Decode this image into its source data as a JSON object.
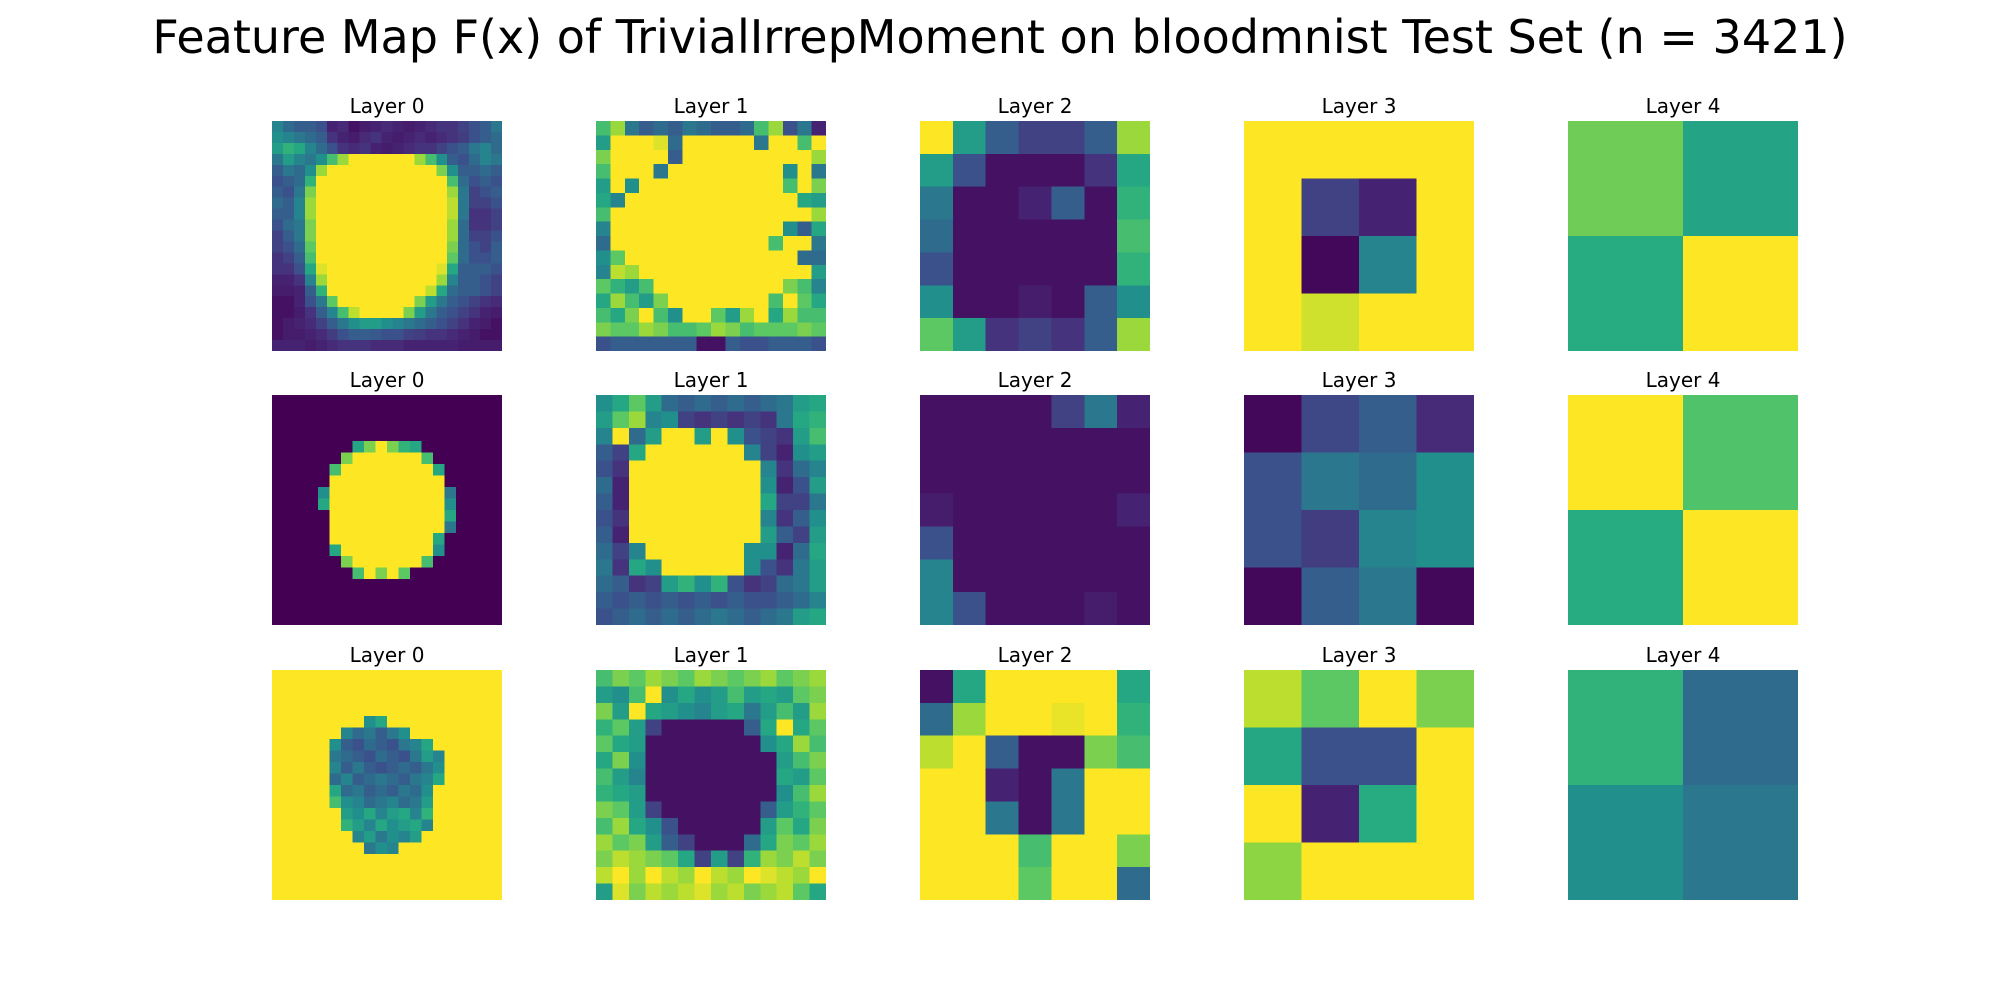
{
  "title": "Feature Map F(x) of TrivialIrrepMoment on bloodmnist Test Set (n = 3421)",
  "chart_data": {
    "type": "heatmap",
    "colormap": "viridis",
    "value_range": [
      0,
      1
    ],
    "rows": [
      {
        "panels": [
          {
            "title": "Layer 0",
            "data": [
              "0.45,0.35,0.30,0.30,0.25,0.10,0.12,0.05,0.08,0.10,0.12,0.10,0.08,0.10,0.12,0.15,0.15,0.20,0.25,0.30,0.40",
              "0.50,0.45,0.40,0.35,0.30,0.15,0.10,0.08,0.12,0.15,0.10,0.08,0.10,0.12,0.10,0.12,0.15,0.18,0.25,0.30,0.35",
              "0.55,0.65,0.60,0.45,0.35,0.25,0.15,0.12,0.15,0.10,0.08,0.10,0.12,0.15,0.15,0.20,0.25,0.30,0.40,0.45,0.35",
              "0.40,0.55,0.45,0.40,0.50,0.70,0.85,1,1,1,1,1,1,0.85,0.70,0.50,0.30,0.25,0.35,0.45,0.40",
              "0.30,0.40,0.35,0.50,0.85,1,1,1,1,1,1,1,1,1,1,0.80,0.50,0.30,0.30,0.35,0.30",
              "0.25,0.30,0.35,0.65,1,1,1,1,1,1,1,1,1,1,1,1,0.70,0.35,0.25,0.30,0.25",
              "0.30,0.25,0.40,0.80,1,1,1,1,1,1,1,1,1,1,1,1,0.85,0.40,0.20,0.25,0.30",
              "0.35,0.30,0.45,0.85,1,1,1,1,1,1,1,1,1,1,1,1,0.90,0.40,0.20,0.20,0.25",
              "0.30,0.30,0.45,0.85,1,1,1,1,1,1,1,1,1,1,1,1,0.90,0.40,0.15,0.15,0.20",
              "0.25,0.35,0.40,0.80,1,1,1,1,1,1,1,1,1,1,1,1,0.85,0.35,0.15,0.15,0.20",
              "0.20,0.30,0.40,0.80,1,1,1,1,1,1,1,1,1,1,1,1,0.85,0.35,0.20,0.20,0.25",
              "0.20,0.25,0.35,0.75,1,1,1,1,1,1,1,1,1,1,1,1,0.80,0.35,0.25,0.20,0.30",
              "0.15,0.20,0.30,0.70,1,1,1,1,1,1,1,1,1,1,1,1,0.75,0.35,0.25,0.25,0.30",
              "0.15,0.15,0.25,0.60,0.95,1,1,1,1,1,1,1,1,1,1,0.95,0.60,0.30,0.30,0.30,0.25",
              "0.10,0.10,0.15,0.45,0.85,1,1,1,1,1,1,1,1,1,1,0.85,0.45,0.30,0.30,0.25,0.20",
              "0.08,0.08,0.10,0.30,0.65,1,1,1,1,1,1,1,1,1,0.90,0.60,0.35,0.30,0.30,0.25,0.20",
              "0.05,0.05,0.10,0.25,0.40,0.75,1,1,1,1,1,1,1,0.80,0.55,0.40,0.30,0.25,0.20,0.15,0.12",
              "0.05,0.05,0.08,0.15,0.30,0.45,0.70,0.90,1,1,1,1,0.80,0.55,0.40,0.30,0.25,0.20,0.15,0.10,0.08",
              "0.05,0.08,0.10,0.12,0.20,0.30,0.40,0.50,0.55,0.55,0.50,0.45,0.40,0.35,0.30,0.25,0.20,0.15,0.10,0.08,0.05",
              "0.05,0.08,0.08,0.10,0.12,0.18,0.25,0.30,0.30,0.28,0.25,0.25,0.20,0.18,0.15,0.15,0.12,0.10,0.08,0.05,0.05",
              "0.10,0.10,0.10,0.08,0.10,0.12,0.15,0.15,0.15,0.12,0.12,0.12,0.10,0.10,0.10,0.10,0.10,0.08,0.08,0.08,0.08"
            ]
          },
          {
            "title": "Layer 1",
            "data": [
              "0.70,0.85,0.40,0.30,0.35,0.30,0.40,0.35,0.30,0.30,0.35,0.70,0.85,0.25,0.40,0.10",
              "0.55,1,1,1,0.95,0.35,1,1,1,1,1,0.40,1,1,0.70,1",
              "0.80,1,1,1,1,0.30,1,1,1,1,1,1,1,1,1,0.85",
              "0.70,1,1,1,0.40,1,1,1,1,1,1,1,1,0.50,1,0.40",
              "0.55,1,0.50,1,1,1,1,1,1,1,1,1,1,0.70,1,0.80",
              "0.60,0.45,1,1,1,1,1,1,1,1,1,1,1,1,0.60,0.55",
              "0.70,1,1,1,1,1,1,1,1,1,1,1,1,1,1,0.85",
              "0.45,1,1,1,1,1,1,1,1,1,1,1,1,0.50,0.30,0.60",
              "0.35,1,1,1,1,1,1,1,1,1,1,1,0.70,1,1,0.40",
              "0.50,0.75,1,1,1,1,1,1,1,1,1,1,1,1,0.35,0.35",
              "0.45,0.90,0.85,1,1,1,1,1,1,1,1,1,1,1,1,0.55",
              "0.75,0.65,0.55,0.70,1,1,1,1,1,1,1,1,1,0.80,0.70,0.45",
              "0.60,0.85,0.70,0.55,0.80,1,1,1,1,1,1,1,0.70,1,0.75,0.60",
              "0.70,0.60,0.80,1,0.70,0.50,1,1,0.75,0.55,0.85,1,0.60,0.85,0.70,0.70",
              "0.80,0.75,0.75,0.85,0.80,0.70,0.70,0.75,0.85,0.80,0.70,0.75,0.75,0.75,0.80,0.75",
              "0.25,0.30,0.30,0.30,0.30,0.30,0.30,0.05,0.05,0.30,0.25,0.25,0.30,0.30,0.30,0.25"
            ]
          },
          {
            "title": "Layer 2",
            "data": [
              "1,0.55,0.30,0.20,0.20,0.30,0.85",
              "0.55,0.25,0.05,0.05,0.05,0.15,0.60",
              "0.40,0.05,0.05,0.10,0.30,0.05,0.65",
              "0.35,0.05,0.05,0.05,0.05,0.05,0.70",
              "0.25,0.05,0.05,0.05,0.05,0.05,0.65",
              "0.50,0.05,0.05,0.08,0.05,0.30,0.50",
              "0.75,0.55,0.15,0.20,0.15,0.30,0.85"
            ]
          },
          {
            "title": "Layer 3",
            "data": [
              "1,1,1,1",
              "1,0.20,0.10,1",
              "1,0.02,0.45,1",
              "1,0.93,1,1"
            ]
          },
          {
            "title": "Layer 4",
            "data": [
              "0.78,0.58",
              "0.62,1"
            ]
          }
        ]
      },
      {
        "panels": [
          {
            "title": "Layer 0",
            "data": [
              "0,0,0,0,0,0,0,0,0,0,0,0,0,0,0,0,0,0,0,0",
              "0,0,0,0,0,0,0,0,0,0,0,0,0,0,0,0,0,0,0,0",
              "0,0,0,0,0,0,0,0,0,0,0,0,0,0,0,0,0,0,0,0",
              "0,0,0,0,0,0,0,0,0,0,0,0,0,0,0,0,0,0,0,0",
              "0,0,0,0,0,0,0,0.60,0.80,1,0.80,0.65,0.60,0,0,0,0,0,0,0",
              "0,0,0,0,0,0,0.80,1,1,1,1,1,1,0.70,0,0,0,0,0,0",
              "0,0,0,0,0,0.70,1,1,1,1,1,1,1,1,0.60,0,0,0,0,0",
              "0,0,0,0,0,1,1,1,1,1,1,1,1,1,1,0,0,0,0,0",
              "0,0,0,0,0.50,1,1,1,1,1,1,1,1,1,1,0.40,0,0,0,0",
              "0,0,0,0,0.60,1,1,1,1,1,1,1,1,1,1,0.50,0,0,0,0",
              "0,0,0,0,0,1,1,1,1,1,1,1,1,1,1,0.60,0,0,0,0",
              "0,0,0,0,0,1,1,1,1,1,1,1,1,1,1,0.40,0,0,0,0",
              "0,0,0,0,0,1,1,1,1,1,1,1,1,1,0.60,0,0,0,0,0",
              "0,0,0,0,0,0.60,1,1,1,1,1,1,1,1,0.50,0,0,0,0,0",
              "0,0,0,0,0,0,0.80,1,1,1,1,1,1,0.70,0,0,0,0,0,0",
              "0,0,0,0,0,0,0,0.70,1,0.80,1,0.75,0,0,0,0,0,0,0,0",
              "0,0,0,0,0,0,0,0,0,0,0,0,0,0,0,0,0,0,0,0",
              "0,0,0,0,0,0,0,0,0,0,0,0,0,0,0,0,0,0,0,0",
              "0,0,0,0,0,0,0,0,0,0,0,0,0,0,0,0,0,0,0,0",
              "0,0,0,0,0,0,0,0,0,0,0,0,0,0,0,0,0,0,0,0"
            ]
          },
          {
            "title": "Layer 1",
            "data": [
              "0.50,0.60,0.75,0.55,0.35,0.30,0.35,0.30,0.35,0.30,0.35,0.40,0.55,0.60",
              "0.55,0.75,0.85,0.45,0.50,0.20,0.15,0.20,0.15,0.20,0.15,0.40,0.60,0.65",
              "0.45,1,0.35,0.55,1,1,0.55,1,0.50,0.25,0.20,0.15,0.55,0.70",
              "0.30,0.20,0.60,1,1,1,1,1,1,0.45,0.20,0.10,0.50,0.55",
              "0.25,0.15,1,1,1,1,1,1,1,1,0.45,0.15,0.35,0.45",
              "0.35,0.10,1,1,1,1,1,1,1,1,0.50,0.10,0.25,0.55",
              "0.30,0.10,1,1,1,1,1,1,1,1,0.60,0.20,0.20,0.40",
              "0.25,0.15,1,1,1,1,1,1,1,1,0.45,0.15,0.30,0.50",
              "0.30,0.10,1,1,1,1,1,1,1,1,0.55,0.30,0.20,0.55",
              "0.35,0.20,0.45,1,1,1,1,1,1,0.50,0.50,0.10,0.35,0.60",
              "0.40,0.15,0.60,0.50,1,1,1,1,1,0.50,0.25,0.15,0.40,0.55",
              "0.35,0.30,0.15,0.20,0.55,0.65,0.50,0.65,0.25,0.15,0.20,0.35,0.40,0.55",
              "0.30,0.25,0.30,0.25,0.30,0.25,0.30,0.25,0.30,0.25,0.25,0.30,0.35,0.45",
              "0.25,0.30,0.35,0.30,0.35,0.30,0.35,0.40,0.35,0.30,0.35,0.40,0.55,0.60"
            ]
          },
          {
            "title": "Layer 2",
            "data": [
              "0.05,0.05,0.05,0.05,0.20,0.40,0.10",
              "0.05,0.05,0.05,0.05,0.05,0.05,0.05",
              "0.05,0.05,0.05,0.05,0.05,0.05,0.05",
              "0.08,0.05,0.05,0.05,0.05,0.05,0.10",
              "0.25,0.05,0.05,0.05,0.05,0.05,0.05",
              "0.45,0.05,0.05,0.05,0.05,0.05,0.05",
              "0.45,0.25,0.05,0.05,0.05,0.08,0.05"
            ]
          },
          {
            "title": "Layer 3",
            "data": [
              "0.02,0.22,0.30,0.12",
              "0.25,0.40,0.35,0.50",
              "0.25,0.18,0.45,0.50",
              "0.02,0.30,0.40,0.02"
            ]
          },
          {
            "title": "Layer 4",
            "data": [
              "1,0.72",
              "0.62,1"
            ]
          }
        ]
      },
      {
        "panels": [
          {
            "title": "Layer 0",
            "data": [
              "1,1,1,1,1,1,1,1,1,1,1,1,1,1,1,1,1,1,1,1",
              "1,1,1,1,1,1,1,1,1,1,1,1,1,1,1,1,1,1,1,1",
              "1,1,1,1,1,1,1,1,1,1,1,1,1,1,1,1,1,1,1,1",
              "1,1,1,1,1,1,1,1,1,1,1,1,1,1,1,1,1,1,1,1",
              "1,1,1,1,1,1,1,1,0.50,0.60,1,1,1,1,1,1,1,1,1,1",
              "1,1,1,1,1,1,0.45,0.35,0.40,0.30,0.40,0.50,1,1,1,1,1,1,1,1",
              "1,1,1,1,1,0.50,0.30,0.25,0.35,0.30,0.25,0.40,0.45,0.60,1,1,1,1,1,1",
              "1,1,1,1,1,0.40,0.35,0.30,0.25,0.35,0.30,0.25,0.40,0.55,0.45,1,1,1,1,1",
              "1,1,1,1,1,0.45,0.30,0.40,0.30,0.25,0.30,0.35,0.30,0.40,0.50,1,1,1,1,1",
              "1,1,1,1,1,0.35,0.45,0.30,0.35,0.40,0.35,0.30,0.40,0.45,0.60,1,1,1,1,1",
              "1,1,1,1,1,0.60,0.35,0.40,0.30,0.35,0.30,0.40,0.35,0.50,1,1,1,1,1,1",
              "1,1,1,1,1,0.70,0.50,0.45,0.35,0.40,0.45,0.35,0.40,0.55,1,1,1,1,1,1",
              "1,1,1,1,1,1,0.55,0.50,0.60,0.45,0.55,0.60,0.45,0.65,1,1,1,1,1,1",
              "1,1,1,1,1,1,0.65,0.55,0.45,0.60,0.50,0.55,0.60,0.45,1,1,1,1,1,1",
              "1,1,1,1,1,1,1,0.45,0.55,0.40,0.50,0.45,0.55,1,1,1,1,1,1,1",
              "1,1,1,1,1,1,1,1,0.40,0.50,0.45,1,1,1,1,1,1,1,1,1",
              "1,1,1,1,1,1,1,1,1,1,1,1,1,1,1,1,1,1,1,1",
              "1,1,1,1,1,1,1,1,1,1,1,1,1,1,1,1,1,1,1,1",
              "1,1,1,1,1,1,1,1,1,1,1,1,1,1,1,1,1,1,1,1",
              "1,1,1,1,1,1,1,1,1,1,1,1,1,1,1,1,1,1,1,1"
            ]
          },
          {
            "title": "Layer 1",
            "data": [
              "0.70,0.80,0.75,0.85,0.80,0.75,0.85,0.80,0.75,0.80,0.85,0.75,0.80,0.85",
              "0.55,0.50,0.70,1,0.50,0.60,0.50,0.55,0.70,0.55,0.60,0.55,0.75,0.80",
              "0.80,0.55,1,0.60,0.55,0.50,0.45,0.55,0.60,0.40,0.55,0.70,0.55,0.85",
              "0.65,0.75,0.55,0.20,0.05,0.05,0.05,0.05,0.05,0.30,0.60,1,0.60,0.75",
              "0.75,0.60,0.55,0.05,0.05,0.05,0.05,0.05,0.05,0.05,0.50,0.60,0.85,0.70",
              "0.60,0.80,0.50,0.05,0.05,0.05,0.05,0.05,0.05,0.05,0.05,0.55,0.70,0.80",
              "0.70,0.55,0.45,0.05,0.05,0.05,0.05,0.05,0.05,0.05,0.05,0.60,0.55,0.75",
              "0.65,0.60,0.55,0.05,0.05,0.05,0.05,0.05,0.05,0.05,0.05,0.50,0.70,0.85",
              "0.80,0.75,0.55,0.20,0.05,0.05,0.05,0.05,0.05,0.05,0.30,0.55,0.65,0.75",
              "0.70,0.85,0.60,0.50,0.25,0.05,0.05,0.05,0.05,0.05,0.55,0.75,0.60,0.80",
              "0.85,0.75,0.80,0.55,0.30,0.20,0.05,0.05,0.05,0.35,0.60,0.80,0.75,0.85",
              "0.80,0.90,0.85,0.80,0.75,0.60,0.20,0.55,0.20,0.65,0.85,0.80,0.90,0.80",
              "0.90,1,0.85,1,0.90,0.85,1,0.90,0.85,1,0.95,0.90,0.85,1",
              "0.55,0.95,0.80,0.90,0.85,0.90,0.95,0.85,0.90,0.80,0.85,0.90,0.75,0.60"
            ]
          },
          {
            "title": "Layer 2",
            "data": [
              "0.05,0.60,1,1,1,1,0.60",
              "0.35,0.85,1,1,0.97,1,0.65",
              "0.90,1,0.30,0.05,0.05,0.80,0.70",
              "1,1,0.10,0.05,0.40,1,1",
              "1,1,0.40,0.05,0.40,1,1",
              "1,1,1,0.70,1,1,0.80",
              "1,1,1,0.75,1,1,0.35"
            ]
          },
          {
            "title": "Layer 3",
            "data": [
              "0.90,0.75,1,0.80",
              "0.60,0.25,0.25,1",
              "1,0.10,0.62,1",
              "0.83,1,1,1"
            ]
          },
          {
            "title": "Layer 4",
            "data": [
              "0.65,0.35",
              "0.50,0.40"
            ]
          }
        ]
      }
    ]
  }
}
